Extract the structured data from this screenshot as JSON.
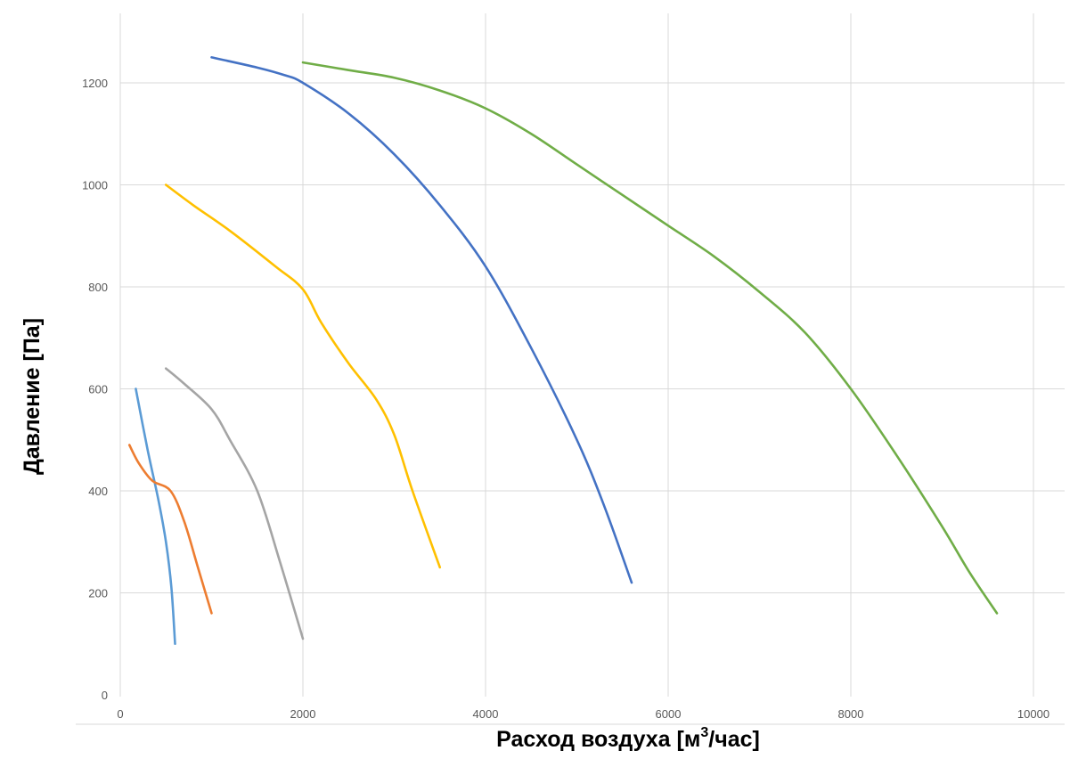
{
  "chart_data": {
    "type": "line",
    "title": "",
    "xlabel_text": "Расход воздуха [м",
    "xlabel_sup": "3",
    "xlabel_tail": "/час]",
    "ylabel": "Давление [Па]",
    "xlim": [
      0,
      10000
    ],
    "ylim": [
      0,
      1200
    ],
    "x_ticks": [
      0,
      2000,
      4000,
      6000,
      8000,
      10000
    ],
    "y_ticks": [
      0,
      200,
      400,
      600,
      800,
      1000,
      1200
    ],
    "grid": true,
    "legend": "none",
    "series": [
      {
        "color": "#5b9bd5",
        "x": [
          170,
          300,
          420,
          500,
          560,
          600
        ],
        "y": [
          600,
          480,
          380,
          300,
          210,
          100
        ]
      },
      {
        "color": "#ed7d31",
        "x": [
          100,
          200,
          350,
          550,
          700,
          850,
          1000
        ],
        "y": [
          490,
          455,
          420,
          400,
          340,
          250,
          160
        ]
      },
      {
        "color": "#a5a5a5",
        "x": [
          500,
          700,
          1000,
          1200,
          1500,
          1750,
          2000
        ],
        "y": [
          640,
          610,
          560,
          500,
          400,
          260,
          110
        ]
      },
      {
        "color": "#ffc000",
        "x": [
          500,
          800,
          1200,
          1700,
          2000,
          2200,
          2500,
          2800,
          3000,
          3200,
          3500
        ],
        "y": [
          1000,
          960,
          910,
          840,
          795,
          730,
          650,
          580,
          510,
          400,
          250
        ]
      },
      {
        "color": "#4472c4",
        "x": [
          1000,
          1500,
          1800,
          2000,
          2500,
          3000,
          3500,
          4000,
          4500,
          5000,
          5300,
          5600
        ],
        "y": [
          1250,
          1230,
          1215,
          1200,
          1140,
          1060,
          960,
          840,
          680,
          500,
          370,
          220
        ]
      },
      {
        "color": "#70ad47",
        "x": [
          2000,
          2500,
          3000,
          3500,
          4000,
          4500,
          5000,
          5500,
          6000,
          6500,
          7000,
          7500,
          8000,
          8500,
          9000,
          9300,
          9600
        ],
        "y": [
          1240,
          1225,
          1210,
          1185,
          1150,
          1100,
          1040,
          980,
          920,
          860,
          790,
          710,
          600,
          470,
          330,
          240,
          160
        ]
      }
    ]
  }
}
